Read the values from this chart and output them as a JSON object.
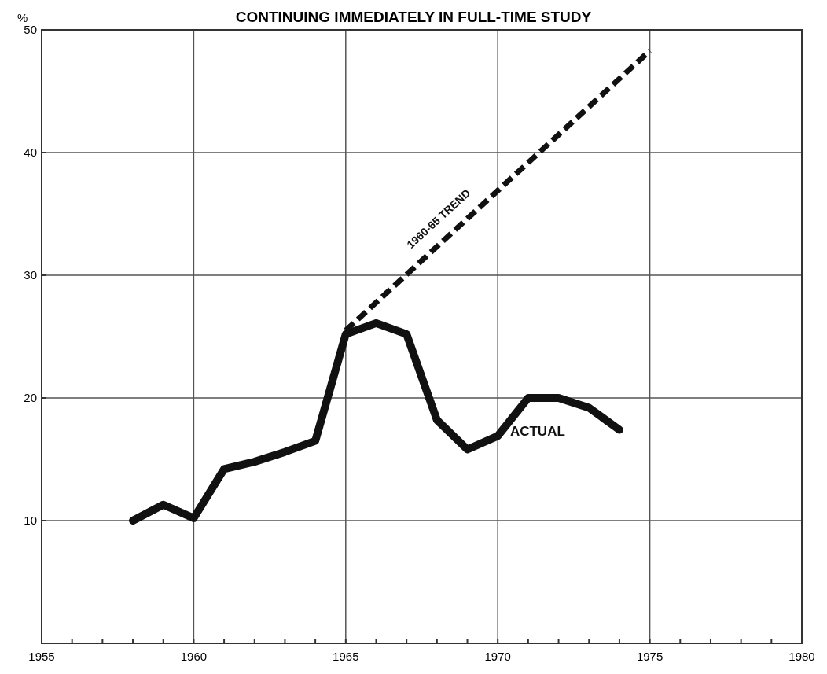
{
  "chart_data": {
    "type": "line",
    "title": "CONTINUING IMMEDIATELY IN FULL-TIME STUDY",
    "ylabel": "%",
    "xlim": [
      1955,
      1980
    ],
    "ylim": [
      0,
      50
    ],
    "xticks": [
      1955,
      {
        "value": 1956,
        "label": null
      },
      {
        "value": 1957,
        "label": null
      },
      {
        "value": 1958,
        "label": null
      },
      {
        "value": 1959,
        "label": null
      },
      1960,
      {
        "value": 1961,
        "label": null
      },
      {
        "value": 1962,
        "label": null
      },
      {
        "value": 1963,
        "label": null
      },
      {
        "value": 1964,
        "label": null
      },
      1965,
      {
        "value": 1966,
        "label": null
      },
      {
        "value": 1967,
        "label": null
      },
      {
        "value": 1968,
        "label": null
      },
      {
        "value": 1969,
        "label": null
      },
      1970,
      {
        "value": 1971,
        "label": null
      },
      {
        "value": 1972,
        "label": null
      },
      {
        "value": 1973,
        "label": null
      },
      {
        "value": 1974,
        "label": null
      },
      1975,
      {
        "value": 1976,
        "label": null
      },
      {
        "value": 1977,
        "label": null
      },
      {
        "value": 1978,
        "label": null
      },
      {
        "value": 1979,
        "label": null
      },
      1980
    ],
    "yticks": [
      10,
      20,
      30,
      40,
      50
    ],
    "grid": true,
    "series": [
      {
        "name": "ACTUAL",
        "color": "#111111",
        "line_style": "solid",
        "x": [
          1958,
          1959,
          1960,
          1961,
          1962,
          1963,
          1964,
          1965,
          1966,
          1967,
          1968,
          1969,
          1970,
          1971,
          1972,
          1973,
          1974
        ],
        "values": [
          10,
          11.3,
          10.2,
          14.2,
          14.8,
          15.6,
          16.5,
          25.2,
          26.1,
          25.2,
          18.2,
          15.8,
          16.9,
          20,
          20,
          19.2,
          17.4
        ]
      },
      {
        "name": "1960-65 TREND",
        "color": "#111111",
        "line_style": "dashed",
        "x": [
          1965,
          1975
        ],
        "values": [
          25.5,
          48.3
        ]
      }
    ]
  }
}
